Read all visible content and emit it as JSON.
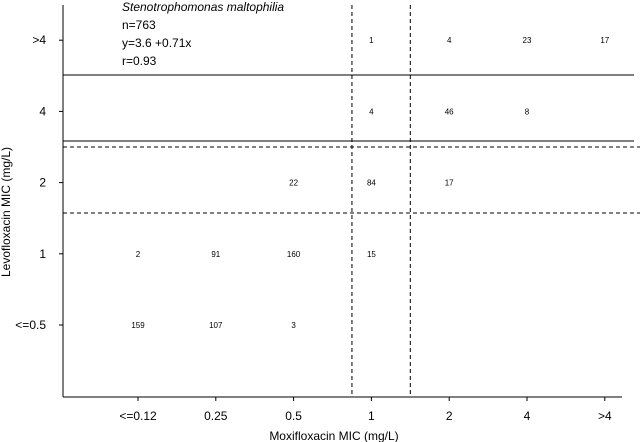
{
  "chart_data": {
    "type": "table",
    "annotation": {
      "organism": "Stenotrophomonas maltophilia",
      "n": "n=763",
      "equation": "y=3.6 +0.71x",
      "r": "r=0.93"
    },
    "xlabel": "Moxifloxacin MIC  (mg/L)",
    "ylabel": "Levofloxacin MIC  (mg/L)",
    "x_categories": [
      "<=0.12",
      "0.25",
      "0.5",
      "1",
      "2",
      "4",
      ">4"
    ],
    "y_categories": [
      "<=0.5",
      "1",
      "2",
      "4",
      ">4"
    ],
    "cells": [
      {
        "x": "1",
        "y": ">4",
        "count": "1"
      },
      {
        "x": "2",
        "y": ">4",
        "count": "4"
      },
      {
        "x": "4",
        "y": ">4",
        "count": "23"
      },
      {
        "x": ">4",
        "y": ">4",
        "count": "17"
      },
      {
        "x": "1",
        "y": "4",
        "count": "4"
      },
      {
        "x": "2",
        "y": "4",
        "count": "46"
      },
      {
        "x": "4",
        "y": "4",
        "count": "8"
      },
      {
        "x": "0.5",
        "y": "2",
        "count": "22"
      },
      {
        "x": "1",
        "y": "2",
        "count": "84"
      },
      {
        "x": "2",
        "y": "2",
        "count": "17"
      },
      {
        "x": "<=0.12",
        "y": "1",
        "count": "2"
      },
      {
        "x": "0.25",
        "y": "1",
        "count": "91"
      },
      {
        "x": "0.5",
        "y": "1",
        "count": "160"
      },
      {
        "x": "1",
        "y": "1",
        "count": "15"
      },
      {
        "x": "<=0.12",
        "y": "<=0.5",
        "count": "159"
      },
      {
        "x": "0.25",
        "y": "<=0.5",
        "count": "107"
      },
      {
        "x": "0.5",
        "y": "<=0.5",
        "count": "3"
      }
    ],
    "vertical_breakpoints_dashed": [
      0.75,
      1.5
    ],
    "horizontal_breakpoints_dashed": [
      1.5,
      3
    ],
    "horizontal_breakpoints_solid": [
      3.5,
      4.5
    ],
    "grid": false
  }
}
